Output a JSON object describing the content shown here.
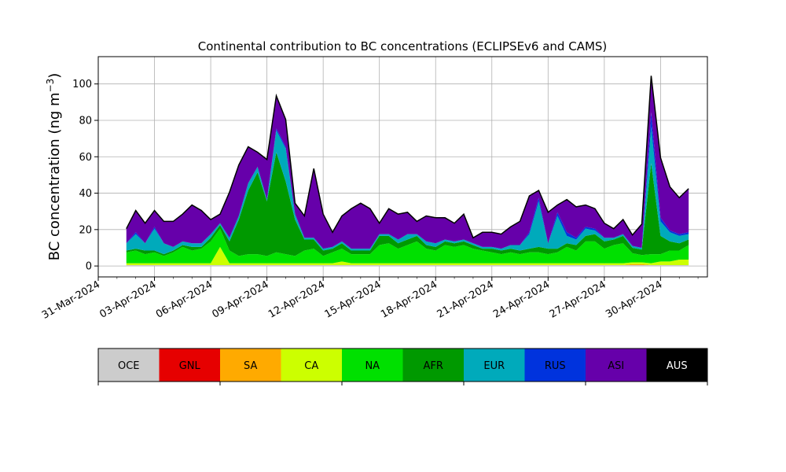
{
  "chart_data": {
    "type": "area",
    "stacked": true,
    "title": "Continental contribution to BC concentrations (ECLIPSEv6 and CAMS)",
    "ylabel_prefix": "BC concentration (ng m",
    "ylabel_exponent": "−3",
    "ylabel_suffix": ")",
    "xlabel": "",
    "xlim": [
      "2024-03-31T00:00",
      "2024-05-02T12:00"
    ],
    "ylim": [
      -6,
      115
    ],
    "y_ticks": [
      0,
      20,
      40,
      60,
      80,
      100
    ],
    "x_tick_labels": [
      "31-Mar-2024",
      "03-Apr-2024",
      "06-Apr-2024",
      "09-Apr-2024",
      "12-Apr-2024",
      "15-Apr-2024",
      "18-Apr-2024",
      "21-Apr-2024",
      "24-Apr-2024",
      "27-Apr-2024",
      "30-Apr-2024"
    ],
    "grid": true,
    "x": [
      "2024-04-01T12:00",
      "2024-04-02T00:00",
      "2024-04-02T12:00",
      "2024-04-03T00:00",
      "2024-04-03T12:00",
      "2024-04-04T00:00",
      "2024-04-04T12:00",
      "2024-04-05T00:00",
      "2024-04-05T12:00",
      "2024-04-06T00:00",
      "2024-04-06T12:00",
      "2024-04-07T00:00",
      "2024-04-07T12:00",
      "2024-04-08T00:00",
      "2024-04-08T12:00",
      "2024-04-09T00:00",
      "2024-04-09T12:00",
      "2024-04-10T00:00",
      "2024-04-10T12:00",
      "2024-04-11T00:00",
      "2024-04-11T12:00",
      "2024-04-12T00:00",
      "2024-04-12T12:00",
      "2024-04-13T00:00",
      "2024-04-13T12:00",
      "2024-04-14T00:00",
      "2024-04-14T12:00",
      "2024-04-15T00:00",
      "2024-04-15T12:00",
      "2024-04-16T00:00",
      "2024-04-16T12:00",
      "2024-04-17T00:00",
      "2024-04-17T12:00",
      "2024-04-18T00:00",
      "2024-04-18T12:00",
      "2024-04-19T00:00",
      "2024-04-19T12:00",
      "2024-04-20T00:00",
      "2024-04-20T12:00",
      "2024-04-21T00:00",
      "2024-04-21T12:00",
      "2024-04-22T00:00",
      "2024-04-22T12:00",
      "2024-04-23T00:00",
      "2024-04-23T12:00",
      "2024-04-24T00:00",
      "2024-04-24T12:00",
      "2024-04-25T00:00",
      "2024-04-25T12:00",
      "2024-04-26T00:00",
      "2024-04-26T12:00",
      "2024-04-27T00:00",
      "2024-04-27T12:00",
      "2024-04-28T00:00",
      "2024-04-28T12:00",
      "2024-04-29T00:00",
      "2024-04-29T12:00",
      "2024-04-30T00:00",
      "2024-04-30T12:00",
      "2024-05-01T00:00",
      "2024-05-01T12:00"
    ],
    "series": [
      {
        "name": "OCE",
        "color": "#cccccc",
        "values": [
          0.5,
          0.5,
          0.5,
          0.5,
          0.5,
          0.5,
          0.5,
          0.5,
          0.5,
          0.5,
          0.5,
          0.5,
          0.5,
          0.5,
          0.5,
          0.5,
          0.5,
          0.5,
          0.5,
          0.5,
          0.5,
          0.5,
          0.5,
          0.5,
          0.5,
          0.5,
          0.5,
          0.5,
          0.5,
          0.5,
          0.5,
          0.5,
          0.5,
          0.5,
          0.5,
          0.5,
          0.5,
          0.5,
          0.5,
          0.5,
          0.5,
          0.5,
          0.5,
          0.5,
          0.5,
          0.5,
          0.5,
          0.5,
          0.5,
          0.5,
          0.5,
          0.5,
          0.5,
          0.5,
          0.5,
          0.5,
          0.5,
          0.5,
          0.5,
          0.5,
          0.5
        ]
      },
      {
        "name": "GNL",
        "color": "#e60000",
        "values": [
          0,
          0,
          0,
          0,
          0,
          0,
          0,
          0,
          0,
          0,
          0,
          0,
          0,
          0,
          0,
          0,
          0,
          0,
          0,
          0,
          0,
          0,
          0,
          0,
          0,
          0,
          0,
          0,
          0,
          0,
          0,
          0,
          0,
          0,
          0,
          0,
          0,
          0,
          0,
          0,
          0,
          0,
          0,
          0,
          0,
          0,
          0,
          0,
          0,
          0,
          0,
          0,
          0,
          0,
          0,
          0,
          0,
          0,
          0,
          0,
          0
        ]
      },
      {
        "name": "SA",
        "color": "#ffaa00",
        "values": [
          0,
          0,
          0,
          0,
          0,
          0,
          0,
          0,
          0,
          0,
          0,
          0,
          0,
          0,
          0,
          0,
          0,
          0,
          0,
          0,
          0,
          0,
          0,
          0,
          0,
          0,
          0,
          0,
          0,
          0,
          0,
          0,
          0,
          0,
          0,
          0,
          0,
          0,
          0,
          0,
          0,
          0,
          0,
          0,
          0,
          0,
          0,
          0,
          0,
          0,
          0,
          0,
          0,
          0,
          0.5,
          0.5,
          0,
          0,
          0,
          0,
          0
        ]
      },
      {
        "name": "CA",
        "color": "#ccff00",
        "values": [
          1,
          1,
          1,
          1,
          1,
          1,
          1,
          1,
          1,
          1,
          10,
          1,
          1,
          1,
          1,
          1,
          1,
          1,
          1,
          1,
          1,
          1,
          1,
          2,
          1,
          1,
          1,
          1,
          1,
          1,
          1,
          1,
          1,
          1,
          1,
          1,
          1,
          1,
          1,
          1,
          1,
          1,
          1,
          1,
          1,
          1,
          1,
          1,
          1,
          1,
          1,
          1,
          1,
          1,
          1,
          1,
          1,
          2,
          2,
          3,
          3
        ]
      },
      {
        "name": "NA",
        "color": "#00e000",
        "values": [
          6,
          7,
          5,
          6,
          4,
          6,
          9,
          7,
          8,
          12,
          10,
          7,
          4,
          5,
          5,
          4,
          6,
          5,
          4,
          7,
          8,
          4,
          6,
          7,
          5,
          5,
          5,
          10,
          11,
          8,
          10,
          12,
          8,
          7,
          10,
          9,
          10,
          8,
          7,
          6,
          5,
          6,
          5,
          6,
          6,
          5,
          6,
          9,
          7,
          12,
          12,
          8,
          10,
          11,
          5,
          4,
          5,
          4,
          6,
          5,
          8
        ]
      },
      {
        "name": "AFR",
        "color": "#009900",
        "values": [
          1,
          1,
          2,
          1,
          1,
          1,
          1,
          2,
          1,
          2,
          2,
          5,
          20,
          35,
          45,
          30,
          55,
          40,
          20,
          6,
          5,
          3,
          2,
          3,
          2,
          2,
          2,
          5,
          4,
          3,
          3,
          3,
          2,
          2,
          2,
          2,
          2,
          2,
          1,
          2,
          2,
          2,
          2,
          2,
          3,
          3,
          2,
          2,
          3,
          3,
          4,
          4,
          3,
          4,
          3,
          3,
          50,
          10,
          5,
          4,
          3
        ]
      },
      {
        "name": "EUR",
        "color": "#00aabb",
        "values": [
          4,
          8,
          4,
          12,
          6,
          2,
          2,
          2,
          2,
          2,
          1,
          2,
          2,
          4,
          3,
          1,
          12,
          18,
          3,
          1,
          1,
          1,
          1,
          1,
          1,
          1,
          1,
          1,
          1,
          2,
          3,
          1,
          2,
          2,
          1,
          1,
          1,
          1,
          1,
          1,
          1,
          2,
          3,
          8,
          25,
          3,
          18,
          4,
          3,
          4,
          2,
          2,
          1,
          1,
          1,
          1,
          20,
          8,
          5,
          4,
          3
        ]
      },
      {
        "name": "RUS",
        "color": "#0033dd",
        "values": [
          0,
          1,
          0,
          1,
          0,
          0,
          0,
          0,
          0,
          0,
          0,
          0,
          0,
          0,
          0,
          0,
          1,
          1,
          0,
          0,
          0,
          0,
          0,
          0,
          0,
          0,
          0,
          0,
          0,
          0,
          0,
          0,
          0,
          0,
          0,
          0,
          0,
          0,
          0,
          0,
          0,
          0,
          0,
          1,
          2,
          0,
          2,
          2,
          1,
          1,
          1,
          0,
          0,
          0,
          0,
          0,
          8,
          2,
          1,
          1,
          1
        ]
      },
      {
        "name": "ASI",
        "color": "#6600aa",
        "values": [
          8,
          12,
          11,
          9,
          12,
          14,
          15,
          21,
          18,
          8,
          5,
          25,
          28,
          20,
          8,
          22,
          18,
          15,
          6,
          12,
          38,
          19,
          8,
          14,
          22,
          25,
          22,
          6,
          14,
          14,
          12,
          7,
          14,
          14,
          12,
          10,
          14,
          3,
          8,
          8,
          8,
          10,
          13,
          20,
          4,
          17,
          4,
          18,
          17,
          12,
          11,
          8,
          5,
          8,
          6,
          13,
          20,
          33,
          24,
          20,
          24
        ]
      },
      {
        "name": "AUS",
        "color": "#000000",
        "values": [
          0,
          0,
          0,
          0,
          0,
          0,
          0,
          0,
          0,
          0,
          0,
          0,
          0,
          0,
          0,
          0,
          0,
          0,
          0,
          0,
          0,
          0,
          0,
          0,
          0,
          0,
          0,
          0,
          0,
          0,
          0,
          0,
          0,
          0,
          0,
          0,
          0,
          0,
          0,
          0,
          0,
          0,
          0,
          0,
          0,
          0,
          0,
          0,
          0,
          0,
          0,
          0,
          0,
          0,
          0,
          0,
          0,
          0,
          0,
          0,
          0
        ]
      }
    ],
    "legend_placement": "below (colorbar)"
  }
}
